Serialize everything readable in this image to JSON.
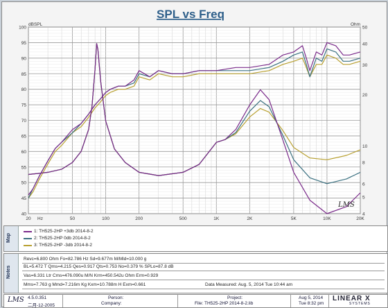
{
  "chart_data": {
    "type": "line",
    "title": "SPL vs Freq",
    "ylabel_left": "dBSPL",
    "ylabel_right": "Ohm",
    "xlim": [
      20,
      20000
    ],
    "ylim": [
      40,
      100
    ],
    "ylim_right": [
      4,
      50
    ],
    "x_scale": "log",
    "y_right_scale": "log",
    "grid": true,
    "x_ticks": [
      "20",
      "Hz",
      "50",
      "100",
      "200",
      "500",
      "1K",
      "2K",
      "5K",
      "10K",
      "20K"
    ],
    "y_ticks": [
      "100",
      "95",
      "90",
      "85",
      "80",
      "75",
      "70",
      "65",
      "60",
      "55",
      "50",
      "45",
      "40"
    ],
    "y_right_ticks": [
      "50",
      "40",
      "30",
      "20",
      "10",
      "8",
      "6",
      "5",
      "4"
    ],
    "annotation": "LMS",
    "series": [
      {
        "name": "1: TH525-2HP +3db 2014-8-2",
        "color": "#7a2a8a",
        "spl_x": [
          20,
          22,
          25,
          30,
          35,
          40,
          50,
          60,
          70,
          80,
          90,
          100,
          110,
          130,
          150,
          180,
          200,
          250,
          300,
          400,
          500,
          700,
          1000,
          1500,
          2000,
          3000,
          4000,
          5000,
          6000,
          6500,
          7000,
          8000,
          9000,
          10000,
          12000,
          14000,
          16000,
          20000
        ],
        "spl_y": [
          46,
          48,
          52,
          57,
          61,
          63,
          67,
          69,
          72,
          75,
          77,
          79,
          80,
          81,
          81,
          83,
          86,
          84,
          86,
          85,
          85,
          86,
          86,
          87,
          87,
          88,
          91,
          92,
          94,
          90,
          86,
          92,
          91,
          95,
          94,
          91,
          91,
          92
        ],
        "imp_x": [
          20,
          25,
          30,
          40,
          50,
          60,
          70,
          75,
          80,
          82.8,
          85,
          90,
          100,
          120,
          150,
          200,
          300,
          500,
          700,
          1000,
          1200,
          1500,
          2000,
          2500,
          3000,
          4000,
          5000,
          7000,
          10000,
          15000,
          20000
        ],
        "imp_y": [
          6.8,
          6.9,
          7.0,
          7.3,
          8.0,
          9.3,
          12.5,
          17,
          28,
          40,
          37,
          24,
          14,
          9.6,
          8.0,
          7.0,
          6.7,
          7.0,
          7.8,
          10.5,
          10.9,
          12.5,
          17.4,
          21.4,
          18.7,
          10.8,
          7.0,
          4.8,
          4.0,
          4.4,
          5.3
        ]
      },
      {
        "name": "2: TH525-2HP 0db 2014-8-2",
        "color": "#3a7080",
        "spl_x": [
          20,
          22,
          25,
          30,
          35,
          40,
          50,
          60,
          70,
          80,
          90,
          100,
          110,
          130,
          150,
          180,
          200,
          250,
          300,
          400,
          500,
          700,
          1000,
          1500,
          2000,
          3000,
          4000,
          5000,
          6000,
          6500,
          7000,
          8000,
          9000,
          10000,
          12000,
          14000,
          16000,
          20000
        ],
        "spl_y": [
          45,
          48,
          52,
          57,
          61,
          63,
          66,
          69,
          72,
          75,
          77,
          79,
          80,
          81,
          81,
          82,
          85,
          84,
          86,
          85,
          85,
          86,
          86,
          86,
          86,
          87,
          89,
          91,
          92,
          88,
          84,
          90,
          89,
          93,
          92,
          89,
          89,
          90
        ],
        "imp_x": [
          20,
          25,
          30,
          40,
          50,
          60,
          70,
          75,
          80,
          82.8,
          85,
          90,
          100,
          120,
          150,
          200,
          300,
          500,
          700,
          1000,
          1200,
          1500,
          2000,
          2500,
          3000,
          4000,
          5000,
          7000,
          10000,
          15000,
          20000
        ],
        "imp_y": [
          6.8,
          6.9,
          7.0,
          7.3,
          8.0,
          9.3,
          12.5,
          17,
          28,
          40,
          37,
          24,
          14,
          9.6,
          8.0,
          7.0,
          6.7,
          7.0,
          7.8,
          10.5,
          10.9,
          12.0,
          16.0,
          18.5,
          17.0,
          11.5,
          8.3,
          6.5,
          6.0,
          6.4,
          7.0
        ]
      },
      {
        "name": "3: TH525-2HP -3db 2014-8-2",
        "color": "#b8a030",
        "spl_x": [
          20,
          22,
          25,
          30,
          35,
          40,
          50,
          60,
          70,
          80,
          90,
          100,
          110,
          130,
          150,
          180,
          200,
          250,
          300,
          400,
          500,
          700,
          1000,
          1500,
          2000,
          3000,
          4000,
          5000,
          6000,
          6500,
          7000,
          8000,
          9000,
          10000,
          12000,
          14000,
          16000,
          20000
        ],
        "spl_y": [
          45,
          47,
          51,
          56,
          60,
          62,
          66,
          68,
          71,
          74,
          76,
          78,
          79,
          80,
          80,
          81,
          84,
          83,
          85,
          84,
          84,
          85,
          85,
          85,
          85,
          86,
          88,
          89,
          90,
          87,
          84,
          88,
          88,
          91,
          90,
          88,
          88,
          89
        ],
        "imp_x": [
          20,
          25,
          30,
          40,
          50,
          60,
          70,
          75,
          80,
          82.8,
          85,
          90,
          100,
          120,
          150,
          200,
          300,
          500,
          700,
          1000,
          1200,
          1500,
          2000,
          2500,
          3000,
          4000,
          5000,
          7000,
          10000,
          15000,
          20000
        ],
        "imp_y": [
          6.8,
          6.9,
          7.0,
          7.3,
          8.0,
          9.3,
          12.5,
          17,
          28,
          40,
          37,
          24,
          14,
          9.6,
          8.0,
          7.0,
          6.7,
          7.0,
          7.8,
          10.5,
          10.9,
          11.8,
          14.8,
          16.6,
          15.8,
          12.3,
          9.8,
          8.5,
          8.3,
          8.8,
          9.5
        ]
      }
    ]
  },
  "map_panel": {
    "label": "Map",
    "entries": [
      "1: TH525-2HP +3db 2014-8-2",
      "2: TH525-2HP 0db 2014-8-2",
      "3: TH525-2HP -3db 2014-8-2"
    ]
  },
  "notes_panel": {
    "label": "Notes",
    "line1": "Revc=6.800 Ohm  Fo=82.786 Hz  Sd=9.677m M/Mld=10.000 g",
    "line2": "BL=5.472 T  Qms=4.215  Qes=0.917  Qts=0.753  No=0.379 %  SPLo=87.8 dB",
    "line3": "Vas=6.331 Ltr  Cms=476.090u M/N  Krm=450.542u Ohm  Erm=0.929",
    "line4": "Mms=7.763 g  Mmd=7.216m Kg  Kxm=10.788m H  Exm=0.661",
    "date_measured": "Data Measured: Aug. 5, 2014  Tue 10:44 am"
  },
  "footer": {
    "version": "4.5.0.351",
    "version_date": "二月-12-2005",
    "person": "Person:",
    "company": "Company:",
    "project": "Project:",
    "file": "File: TH525-2HP   2014-8-2.lib",
    "date": "Aug  5, 2014",
    "time": "Tue  8:32 pm",
    "brand": "LINEAR X",
    "brand_sub": "SYSTEMS",
    "logo_text": "LMS"
  },
  "colors": {
    "title": "#2e5f8a",
    "series1": "#7a2a8a",
    "series2": "#3a7080",
    "series3": "#b8a030",
    "grid": "#b8b8b8"
  }
}
